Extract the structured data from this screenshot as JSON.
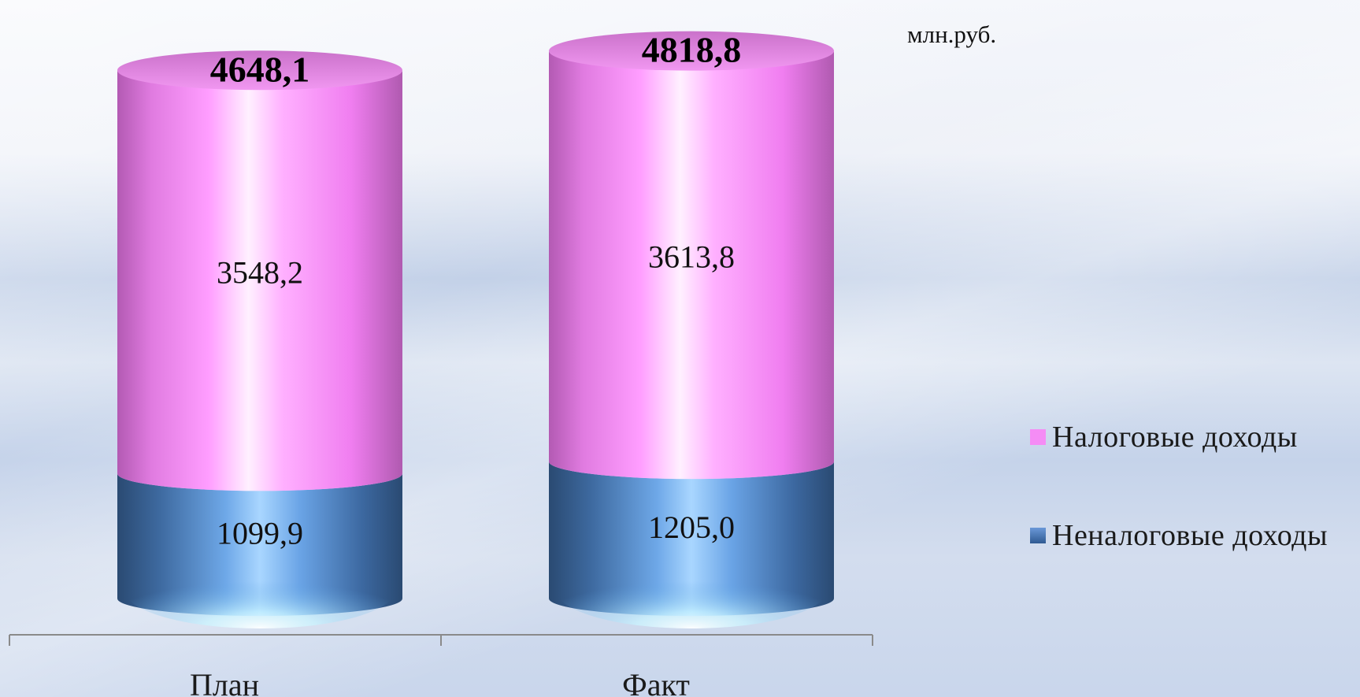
{
  "unit": "млн.руб.",
  "chart_data": {
    "type": "bar",
    "stacked": true,
    "shape": "cylinder",
    "categories": [
      "План",
      "Факт"
    ],
    "series": [
      {
        "name": "Неналоговые доходы",
        "values": [
          1099.9,
          1205.0
        ],
        "labels": [
          "1099,9",
          "1205,0"
        ],
        "color": "#5f8fce"
      },
      {
        "name": "Налоговые доходы",
        "values": [
          3548.2,
          3613.8
        ],
        "labels": [
          "3548,2",
          "3613,8"
        ],
        "color": "#f58cf5"
      }
    ],
    "totals": [
      4648.1,
      4818.8
    ],
    "total_labels": [
      "4648,1",
      "4818,8"
    ],
    "legend_position": "right",
    "grid": false
  },
  "legend": [
    {
      "label": "Налоговые доходы",
      "color": "#f58cf5"
    },
    {
      "label": "Неналоговые доходы",
      "color": "#4c78b8"
    }
  ]
}
